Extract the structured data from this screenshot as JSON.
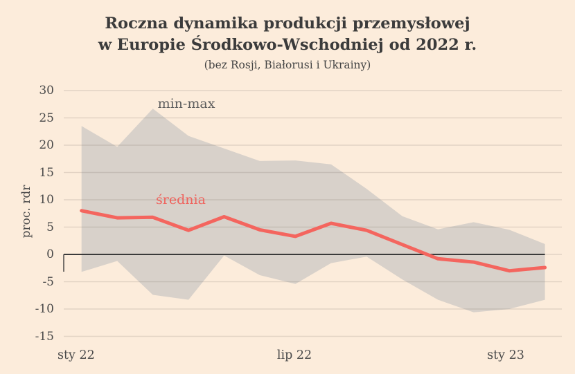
{
  "title": {
    "line1": "Roczna dynamika produkcji przemysłowej",
    "line2": "w Europie Środkowo-Wschodniej od 2022 r.",
    "subtitle": "(bez Rosji, Białorusi i Ukrainy)"
  },
  "labels": {
    "band": "min-max",
    "mean": "średnia"
  },
  "colors": {
    "background": "#fcecdb",
    "band_fill": "#d8d1ca",
    "mean_line": "#f4655e",
    "zero_line": "#3b3b3b",
    "gridline": "rgba(110,100,95,0.18)",
    "title_text": "#3b3b3b",
    "tick_text": "#4a4a4a",
    "band_label_text": "#5f5f5f",
    "mean_label_text": "#ef625c"
  },
  "chart_data": {
    "type": "line",
    "title": "Roczna dynamika produkcji przemysłowej w Europie Środkowo-Wschodniej od 2022 r.",
    "subtitle": "(bez Rosji, Białorusi i Ukrainy)",
    "ylabel": "proc. rdr",
    "xlabel": "",
    "ylim": [
      -15,
      30
    ],
    "yticks": [
      30,
      25,
      20,
      15,
      10,
      5,
      0,
      -5,
      -10,
      -15
    ],
    "grid": "horizontal",
    "zero_line": true,
    "legend_position": "inline-annotations",
    "x": [
      "sty 22",
      "lut 22",
      "mar 22",
      "kwi 22",
      "maj 22",
      "cze 22",
      "lip 22",
      "sie 22",
      "wrz 22",
      "paź 22",
      "lis 22",
      "gru 22",
      "sty 23",
      "lut 23"
    ],
    "x_tick_labels": [
      "sty 22",
      "lip 22",
      "sty 23"
    ],
    "series": [
      {
        "name": "średnia",
        "role": "mean-line",
        "values": [
          8.0,
          6.7,
          6.8,
          4.4,
          6.9,
          4.5,
          3.3,
          5.7,
          4.4,
          1.8,
          -0.8,
          -1.4,
          -3.0,
          -2.4
        ]
      },
      {
        "name": "max",
        "role": "band-upper",
        "values": [
          23.5,
          19.7,
          26.7,
          21.7,
          19.4,
          17.1,
          17.2,
          16.5,
          12.0,
          7.0,
          4.6,
          5.9,
          4.5,
          1.9
        ]
      },
      {
        "name": "min",
        "role": "band-lower",
        "values": [
          -3.2,
          -1.2,
          -7.4,
          -8.3,
          -0.2,
          -3.8,
          -5.4,
          -1.6,
          -0.4,
          -4.6,
          -8.3,
          -10.6,
          -10.0,
          -8.3
        ]
      }
    ]
  }
}
